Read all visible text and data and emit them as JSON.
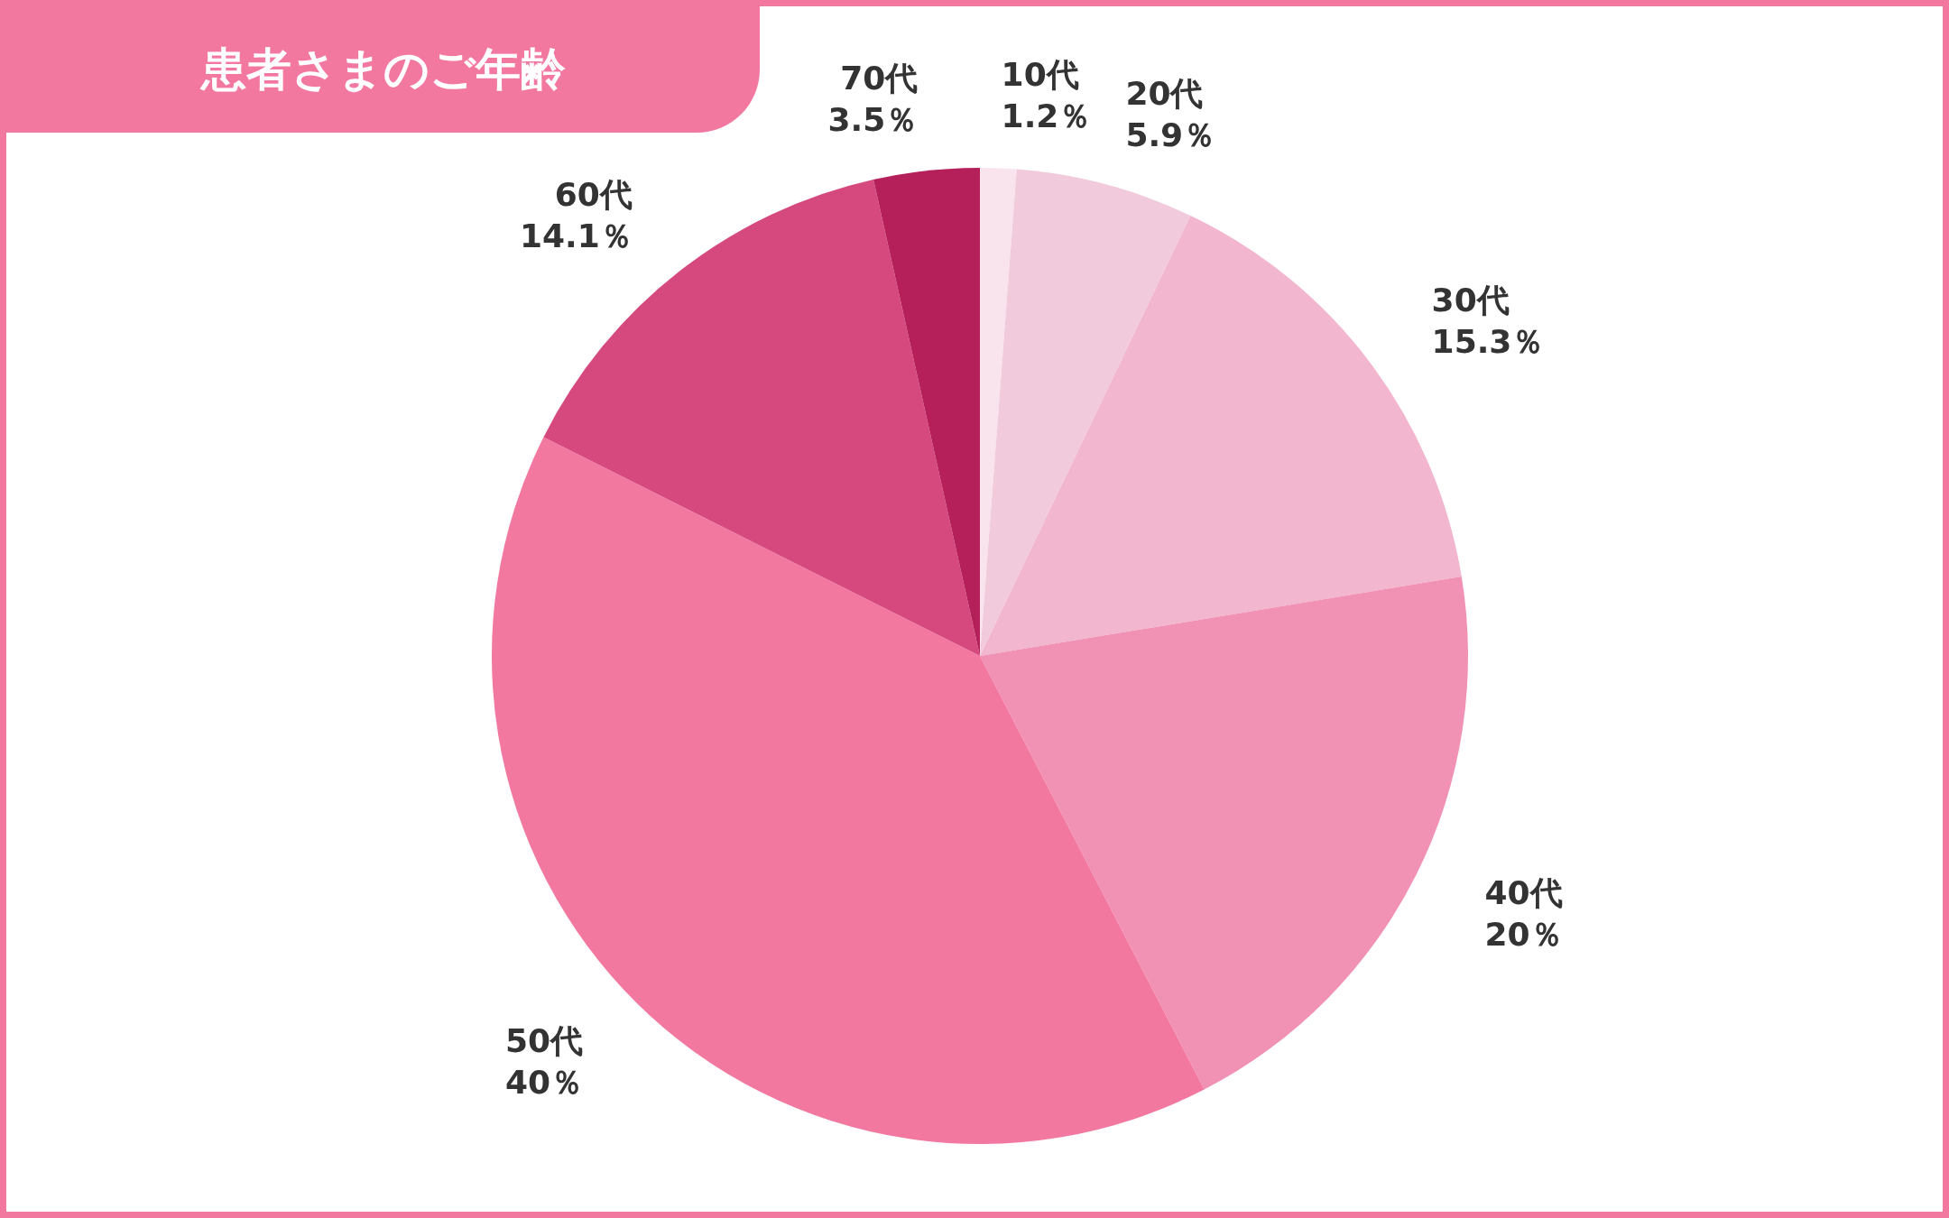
{
  "chart_data": {
    "type": "pie",
    "title": "患者さまのご年齢",
    "categories": [
      "10代",
      "20代",
      "30代",
      "40代",
      "50代",
      "60代",
      "70代"
    ],
    "values": [
      1.2,
      5.9,
      15.3,
      20,
      40,
      14.1,
      3.5
    ],
    "value_labels": [
      "1.2％",
      "5.9％",
      "15.3％",
      "20％",
      "40％",
      "14.1％",
      "3.5％"
    ],
    "colors": [
      "#f9e3ec",
      "#f1cbdc",
      "#f2b6cf",
      "#f192b4",
      "#f278a0",
      "#d6497e",
      "#b51f5a"
    ]
  }
}
